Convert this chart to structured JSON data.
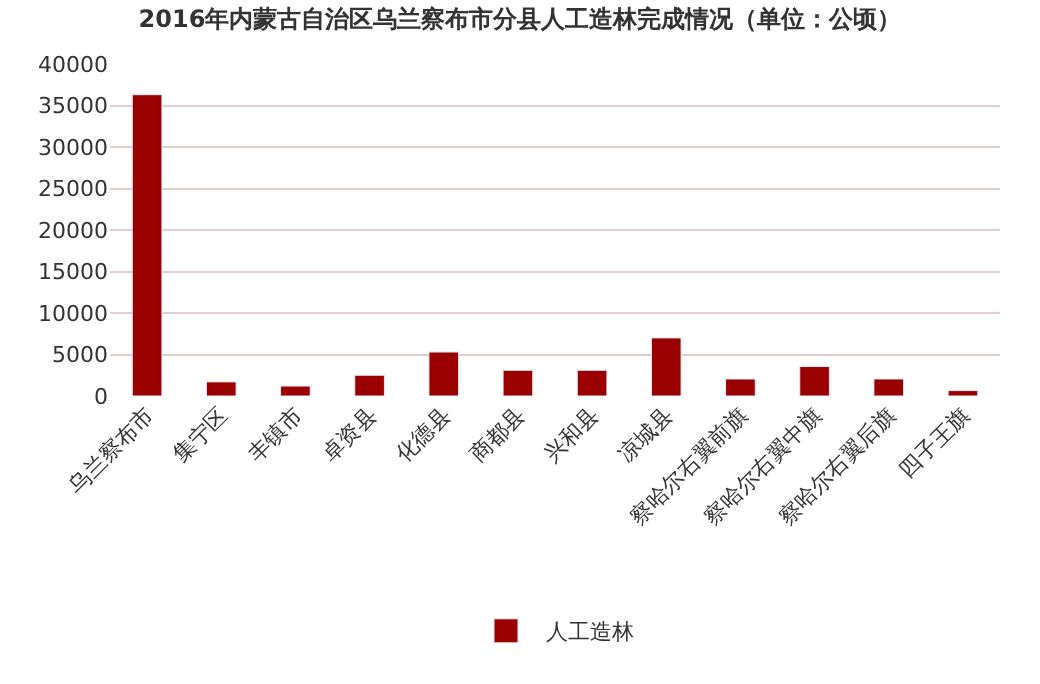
{
  "chart_data": {
    "type": "bar",
    "title": "2016年内蒙古自治区乌兰察布市分县人工造林完成情况（单位：公顷）",
    "categories": [
      "乌兰察布市",
      "集宁区",
      "丰镇市",
      "卓资县",
      "化德县",
      "商都县",
      "兴和县",
      "凉城县",
      "察哈尔右翼前旗",
      "察哈尔右翼中旗",
      "察哈尔右翼后旗",
      "四子王旗"
    ],
    "series": [
      {
        "name": "人工造林",
        "color": "#9b0000",
        "values": [
          36300,
          1700,
          1200,
          2500,
          5300,
          3100,
          3100,
          7000,
          2050,
          3550,
          2050,
          650
        ]
      }
    ],
    "ylim": [
      0,
      40000
    ],
    "yticks": [
      0,
      5000,
      10000,
      15000,
      20000,
      25000,
      30000,
      35000,
      40000
    ],
    "grid": "y",
    "legend": "bottom"
  }
}
